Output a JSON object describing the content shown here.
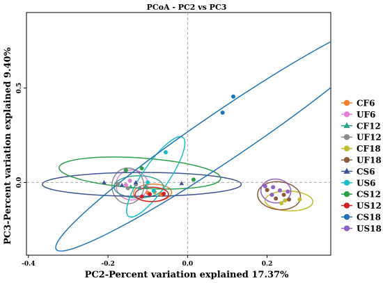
{
  "chart_data": {
    "type": "scatter",
    "title": "PCoA - PC2 vs PC3",
    "xlabel": "PC2-Percent variation explained 17.37%",
    "ylabel": "PC3-Percent variation explained 9.40%",
    "xlim": [
      -0.405,
      0.36
    ],
    "ylim": [
      -0.385,
      0.9
    ],
    "x_ticks": [
      "-0.4",
      "-0.2",
      "0.0",
      "0.2"
    ],
    "y_ticks": [
      "0.0",
      "0.5"
    ],
    "grid": false,
    "reference_lines": "dashed at x=0 and y=0",
    "legend_position": "right",
    "series": [
      {
        "name": "CF6",
        "color": "#F07E2B",
        "marker": "circle",
        "points": [
          [
            -0.083,
            -0.05
          ],
          [
            -0.067,
            -0.063
          ],
          [
            -0.1,
            -0.055
          ]
        ],
        "ellipse": {
          "cx": -0.088,
          "cy": -0.055,
          "rx": 0.048,
          "ry": 0.022,
          "angle": 3
        }
      },
      {
        "name": "UF6",
        "color": "#E37FD4",
        "marker": "circle",
        "points": [
          [
            -0.155,
            -0.013
          ],
          [
            -0.12,
            -0.03
          ],
          [
            -0.145,
            0.01
          ]
        ],
        "ellipse": {
          "cx": -0.14,
          "cy": -0.013,
          "rx": 0.04,
          "ry": 0.038,
          "angle": 0
        }
      },
      {
        "name": "CF12",
        "color": "#2AA18A",
        "marker": "triangle",
        "points": [
          [
            -0.143,
            -0.023
          ],
          [
            -0.105,
            -0.02
          ],
          [
            -0.12,
            -0.03
          ]
        ],
        "ellipse": {
          "cx": -0.123,
          "cy": -0.023,
          "rx": 0.062,
          "ry": 0.028,
          "angle": 0
        }
      },
      {
        "name": "UF12",
        "color": "#8C8C8C",
        "marker": "circle",
        "points": [
          [
            -0.175,
            -0.008
          ],
          [
            -0.15,
            -0.03
          ],
          [
            -0.13,
            -0.01
          ]
        ],
        "ellipse": {
          "cx": -0.15,
          "cy": -0.018,
          "rx": 0.04,
          "ry": 0.045,
          "angle": 0
        }
      },
      {
        "name": "CF18",
        "color": "#C0BD2E",
        "marker": "circle",
        "points": [
          [
            0.245,
            -0.095
          ],
          [
            0.282,
            -0.09
          ],
          [
            0.236,
            -0.11
          ]
        ],
        "ellipse": {
          "cx": 0.255,
          "cy": -0.098,
          "rx": 0.06,
          "ry": 0.025,
          "angle": -4
        }
      },
      {
        "name": "UF18",
        "color": "#8E5A3C",
        "marker": "circle",
        "points": [
          [
            0.2,
            -0.04
          ],
          [
            0.242,
            -0.065
          ],
          [
            0.222,
            -0.085
          ],
          [
            0.255,
            -0.09
          ]
        ],
        "ellipse": {
          "cx": 0.23,
          "cy": -0.07,
          "rx": 0.055,
          "ry": 0.035,
          "angle": -12
        }
      },
      {
        "name": "CS6",
        "color": "#3E5493",
        "marker": "triangle",
        "points": [
          [
            -0.21,
            0.0
          ],
          [
            -0.165,
            -0.015
          ],
          [
            -0.13,
            0.0
          ],
          [
            -0.015,
            -0.005
          ]
        ],
        "ellipse": {
          "cx": -0.115,
          "cy": -0.01,
          "rx": 0.25,
          "ry": 0.03,
          "angle": 0
        }
      },
      {
        "name": "US6",
        "color": "#19BFC6",
        "marker": "circle",
        "points": [
          [
            -0.055,
            0.16
          ],
          [
            -0.1,
            0.0
          ],
          [
            -0.085,
            -0.045
          ]
        ],
        "ellipse": {
          "cx": -0.08,
          "cy": 0.03,
          "rx": 0.22,
          "ry": 0.033,
          "angle": 72
        }
      },
      {
        "name": "CS12",
        "color": "#2E9F49",
        "marker": "circle",
        "points": [
          [
            -0.155,
            0.065
          ],
          [
            -0.115,
            0.075
          ],
          [
            0.015,
            0.015
          ]
        ],
        "ellipse": {
          "cx": -0.12,
          "cy": 0.05,
          "rx": 0.205,
          "ry": 0.038,
          "angle": -8
        }
      },
      {
        "name": "US12",
        "color": "#D22027",
        "marker": "circle",
        "points": [
          [
            -0.095,
            -0.062
          ],
          [
            -0.06,
            -0.06
          ],
          [
            -0.115,
            -0.075
          ]
        ],
        "ellipse": {
          "cx": -0.09,
          "cy": -0.063,
          "rx": 0.042,
          "ry": 0.018,
          "angle": 0
        }
      },
      {
        "name": "CS18",
        "color": "#1E73B8",
        "marker": "circle",
        "points": [
          [
            0.088,
            0.37
          ],
          [
            0.115,
            0.455
          ]
        ],
        "ellipse": {
          "cx": 0.1,
          "cy": 0.26,
          "rx": 0.75,
          "ry": 0.06,
          "angle": 55
        }
      },
      {
        "name": "US18",
        "color": "#8E63C4",
        "marker": "circle",
        "points": [
          [
            0.195,
            -0.02
          ],
          [
            0.215,
            -0.025
          ],
          [
            0.232,
            -0.042
          ],
          [
            0.212,
            -0.065
          ],
          [
            0.252,
            -0.048
          ]
        ],
        "ellipse": {
          "cx": 0.222,
          "cy": -0.045,
          "rx": 0.038,
          "ry": 0.03,
          "angle": -8
        }
      }
    ]
  }
}
